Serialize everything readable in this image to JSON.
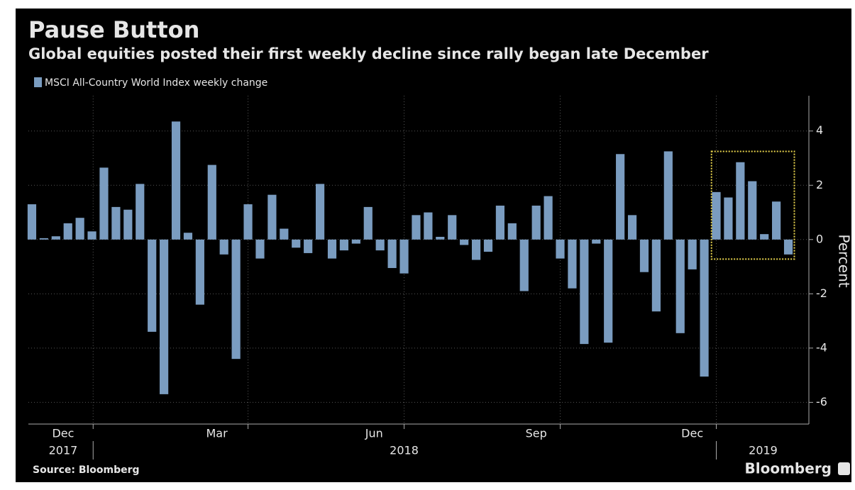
{
  "chart_data": {
    "type": "bar",
    "title": "Pause Button",
    "subtitle": "Global equities posted their first weekly decline since rally began late December",
    "series": [
      {
        "name": "MSCI All-Country World Index weekly change",
        "color": "#7a9cc0",
        "values": [
          1.3,
          0.05,
          0.12,
          0.6,
          0.8,
          0.3,
          2.65,
          1.2,
          1.1,
          2.05,
          -3.4,
          -5.7,
          4.35,
          0.25,
          -2.4,
          2.75,
          -0.55,
          -4.4,
          1.3,
          -0.7,
          1.65,
          0.4,
          -0.3,
          -0.5,
          2.05,
          -0.7,
          -0.4,
          -0.15,
          1.2,
          -0.4,
          -1.05,
          -1.25,
          0.9,
          1.0,
          0.1,
          0.9,
          -0.2,
          -0.75,
          -0.45,
          1.25,
          0.6,
          -1.9,
          1.25,
          1.6,
          -0.7,
          -1.8,
          -3.85,
          -0.15,
          -3.8,
          3.15,
          0.9,
          -1.2,
          -2.65,
          3.25,
          -3.45,
          -1.1,
          -5.05,
          1.75,
          1.55,
          2.85,
          2.15,
          0.2,
          1.4,
          -0.55
        ]
      }
    ],
    "xlim": [
      -0.5,
      63.5
    ],
    "xgrid": [
      5.1,
      18,
      31,
      44,
      57
    ],
    "xlabels": [
      {
        "value": 2.6,
        "label": "Dec"
      },
      {
        "value": 15.4,
        "label": "Mar"
      },
      {
        "value": 28.5,
        "label": "Jun"
      },
      {
        "value": 42,
        "label": "Sep"
      },
      {
        "value": 55,
        "label": "Dec"
      }
    ],
    "years": [
      {
        "value": 2.6,
        "label": "2017"
      },
      {
        "value": 31,
        "label": "2018"
      },
      {
        "value": 60.9,
        "label": "2019"
      }
    ],
    "ylim": [
      -6.8,
      5.3
    ],
    "yticks": [
      -6,
      -4,
      -2,
      0,
      2,
      4
    ],
    "ylabel": "Percent",
    "grid": true,
    "highlight": {
      "from": 56.6,
      "to": 63.5,
      "ymin": -0.72,
      "ymax": 3.25,
      "color": "#e8d44d"
    },
    "source": "Source: Bloomberg",
    "brand": "Bloomberg"
  }
}
